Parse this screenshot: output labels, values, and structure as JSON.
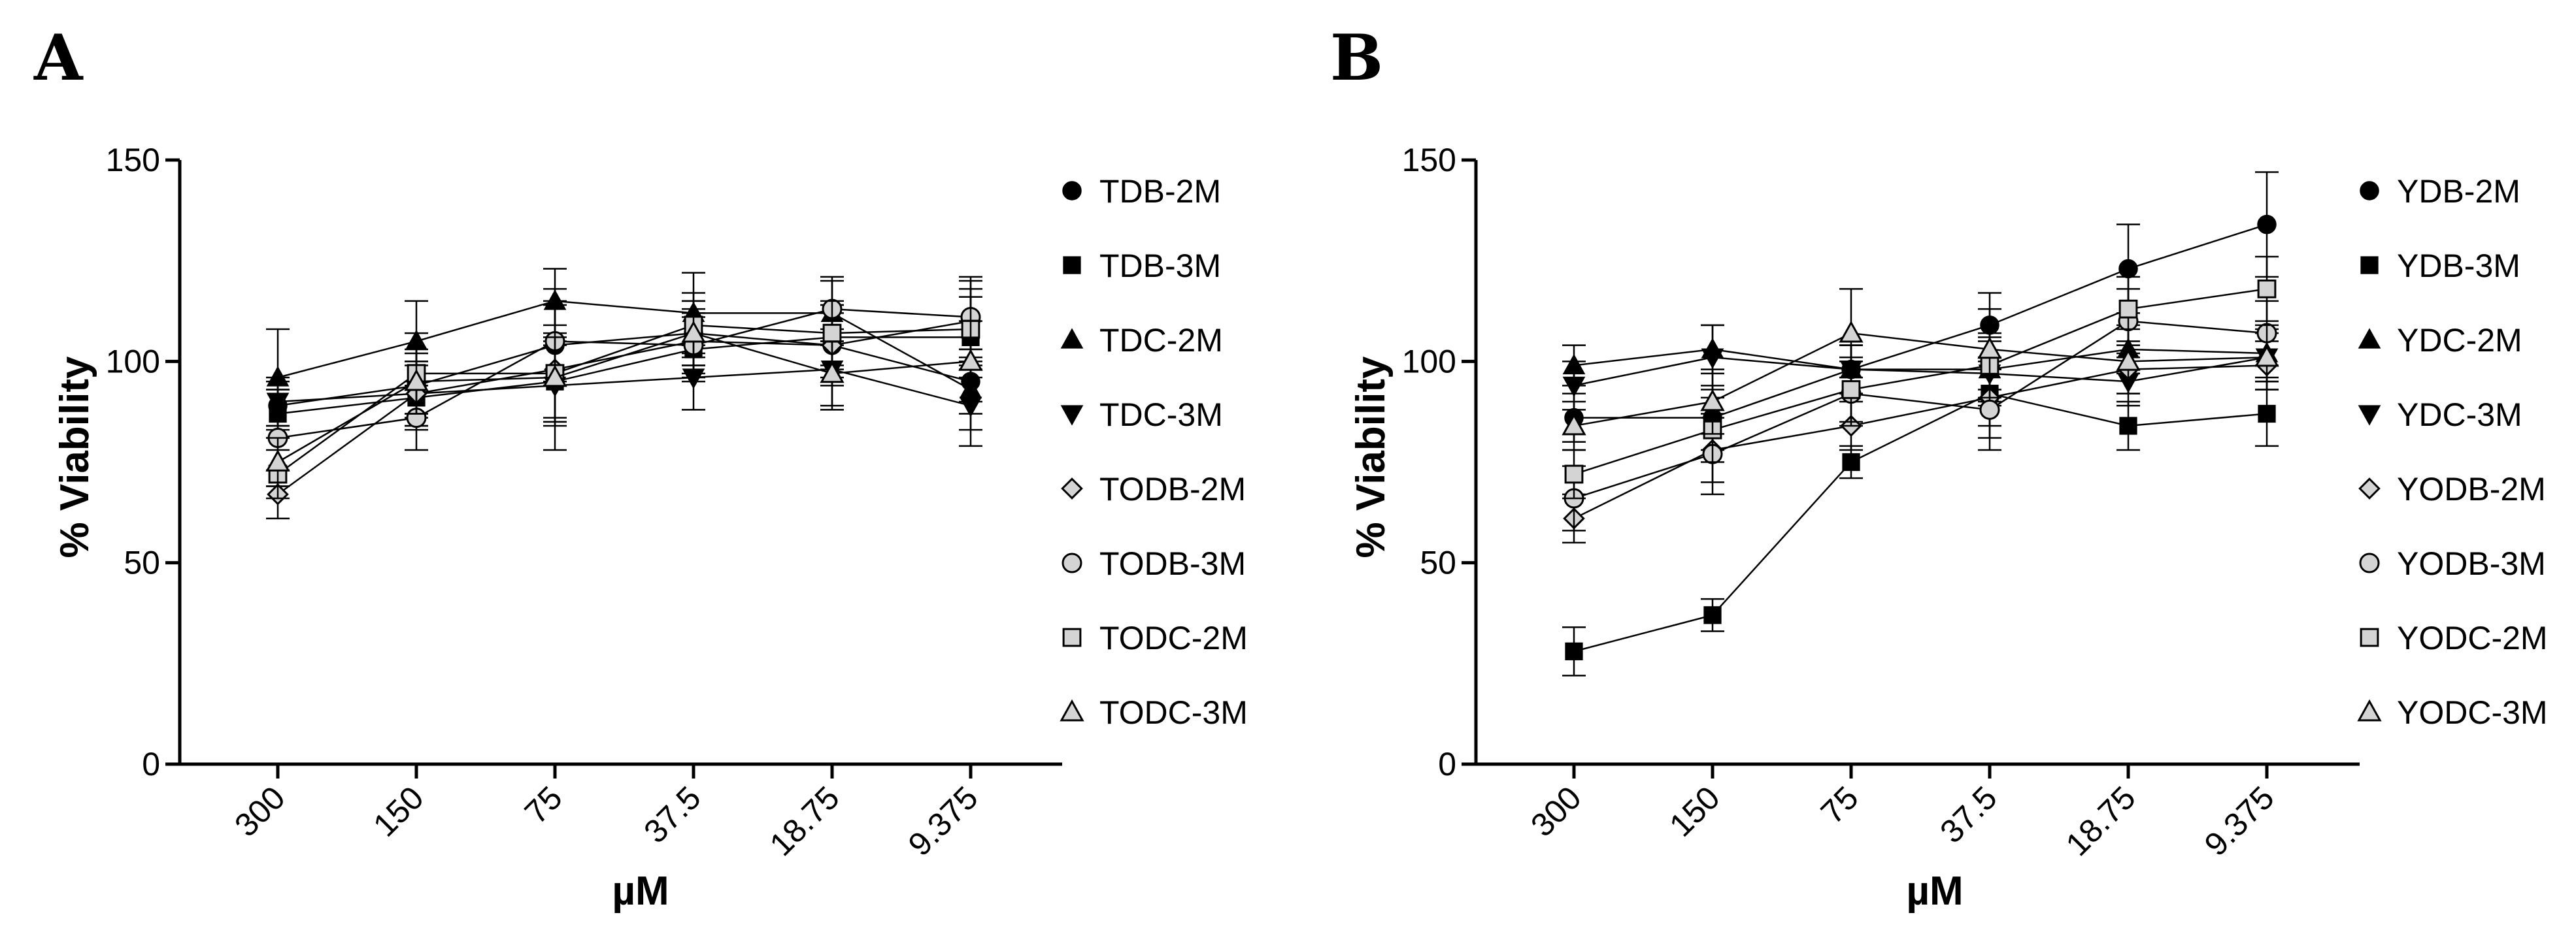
{
  "chart_data": [
    {
      "type": "line",
      "panel_label": "A",
      "title": "",
      "xlabel": "µM",
      "ylabel": "% Viability",
      "ylim": [
        0,
        150
      ],
      "yticks": [
        0,
        50,
        100,
        150
      ],
      "categories": [
        "300",
        "150",
        "75",
        "37.5",
        "18.75",
        "9.375"
      ],
      "legend_position": "right",
      "series": [
        {
          "name": "TDB-2M",
          "marker": "circle",
          "fill": "#000000",
          "values": [
            89,
            94,
            104,
            107,
            104,
            95
          ],
          "errors": [
            6,
            8,
            10,
            8,
            8,
            8
          ]
        },
        {
          "name": "TDB-3M",
          "marker": "square",
          "fill": "#000000",
          "values": [
            87,
            91,
            95,
            103,
            106,
            106
          ],
          "errors": [
            6,
            8,
            10,
            8,
            8,
            10
          ]
        },
        {
          "name": "TDC-2M",
          "marker": "triangle-up",
          "fill": "#000000",
          "values": [
            96,
            105,
            115,
            112,
            112,
            93
          ],
          "errors": [
            12,
            10,
            8,
            10,
            8,
            10
          ]
        },
        {
          "name": "TDC-3M",
          "marker": "triangle-down",
          "fill": "#000000",
          "values": [
            90,
            92,
            94,
            96,
            98,
            89
          ],
          "errors": [
            6,
            8,
            10,
            8,
            10,
            10
          ]
        },
        {
          "name": "TODB-2M",
          "marker": "diamond",
          "fill": "#d4d4d4",
          "values": [
            67,
            92,
            98,
            105,
            104,
            110
          ],
          "errors": [
            6,
            8,
            20,
            8,
            10,
            10
          ]
        },
        {
          "name": "TODB-3M",
          "marker": "circle",
          "fill": "#d4d4d4",
          "values": [
            81,
            86,
            105,
            104,
            113,
            111
          ],
          "errors": [
            12,
            8,
            10,
            8,
            8,
            10
          ]
        },
        {
          "name": "TODC-2M",
          "marker": "square",
          "fill": "#d4d4d4",
          "values": [
            72,
            97,
            97,
            109,
            107,
            108
          ],
          "errors": [
            6,
            10,
            12,
            8,
            8,
            10
          ]
        },
        {
          "name": "TODC-3M",
          "marker": "triangle-up",
          "fill": "#d4d4d4",
          "values": [
            75,
            95,
            96,
            107,
            97,
            100
          ],
          "errors": [
            6,
            8,
            10,
            8,
            8,
            10
          ]
        }
      ]
    },
    {
      "type": "line",
      "panel_label": "B",
      "title": "",
      "xlabel": "µM",
      "ylabel": "% Viability",
      "ylim": [
        0,
        150
      ],
      "yticks": [
        0,
        50,
        100,
        150
      ],
      "categories": [
        "300",
        "150",
        "75",
        "37.5",
        "18.75",
        "9.375"
      ],
      "legend_position": "right",
      "series": [
        {
          "name": "YDB-2M",
          "marker": "circle",
          "fill": "#000000",
          "values": [
            86,
            86,
            98,
            109,
            123,
            134
          ],
          "errors": [
            6,
            8,
            6,
            8,
            11,
            13
          ]
        },
        {
          "name": "YDB-3M",
          "marker": "square",
          "fill": "#000000",
          "values": [
            28,
            37,
            75,
            92,
            84,
            87
          ],
          "errors": [
            6,
            4,
            4,
            8,
            6,
            8
          ]
        },
        {
          "name": "YDC-2M",
          "marker": "triangle-up",
          "fill": "#000000",
          "values": [
            99,
            103,
            98,
            98,
            103,
            102
          ],
          "errors": [
            5,
            6,
            6,
            8,
            6,
            6
          ]
        },
        {
          "name": "YDC-3M",
          "marker": "triangle-down",
          "fill": "#000000",
          "values": [
            94,
            101,
            98,
            97,
            95,
            101
          ],
          "errors": [
            6,
            8,
            6,
            8,
            6,
            6
          ]
        },
        {
          "name": "YODB-2M",
          "marker": "diamond",
          "fill": "#d4d4d4",
          "values": [
            61,
            78,
            84,
            91,
            98,
            99
          ],
          "errors": [
            6,
            8,
            6,
            10,
            6,
            6
          ]
        },
        {
          "name": "YODB-3M",
          "marker": "circle",
          "fill": "#d4d4d4",
          "values": [
            66,
            77,
            92,
            88,
            110,
            107
          ],
          "errors": [
            8,
            10,
            8,
            10,
            8,
            8
          ]
        },
        {
          "name": "YODC-2M",
          "marker": "square",
          "fill": "#d4d4d4",
          "values": [
            72,
            83,
            93,
            99,
            113,
            118
          ],
          "errors": [
            6,
            8,
            8,
            8,
            8,
            8
          ]
        },
        {
          "name": "YODC-3M",
          "marker": "triangle-up",
          "fill": "#d4d4d4",
          "values": [
            84,
            90,
            107,
            103,
            100,
            101
          ],
          "errors": [
            6,
            8,
            11,
            10,
            8,
            8
          ]
        }
      ]
    }
  ]
}
